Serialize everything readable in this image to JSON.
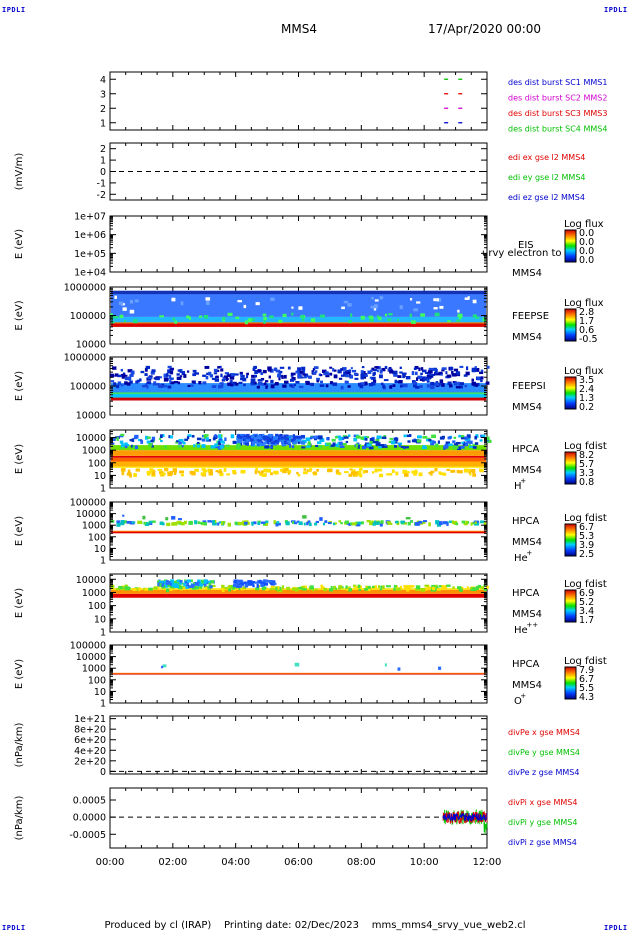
{
  "corner_label": "IPDLI",
  "header": {
    "spacecraft": "MMS4",
    "date": "17/Apr/2020 00:00"
  },
  "footer": {
    "producer": "Produced by cl (IRAP)",
    "printing_date": "Printing date: 02/Dec/2023",
    "script": "mms_mms4_srvy_vue_web2.cl"
  },
  "colors": {
    "red": "#e00000",
    "green": "#00c000",
    "blue": "#0000cc",
    "magenta": "#d000d0",
    "orange": "#ff8800",
    "yellow": "#ffee00",
    "cyan": "#00c8ff"
  },
  "chart_data": [
    {
      "type": "scatter",
      "panel": "burst",
      "yticks": [
        "1",
        "2",
        "3",
        "4"
      ],
      "ylim": [
        0.5,
        4.5
      ],
      "legend": [
        {
          "label": "des dist burst SC1 MMS1",
          "color": "#0000cc"
        },
        {
          "label": "des dist burst SC2 MMS2",
          "color": "#d000d0"
        },
        {
          "label": "des dist burst SC3 MMS3",
          "color": "#e00000"
        },
        {
          "label": "des dist burst SC4 MMS4",
          "color": "#00c000"
        }
      ],
      "series": [
        {
          "name": "des dist burst SC1 MMS1",
          "x": [
            10.7,
            11.15
          ],
          "y": [
            1,
            1
          ]
        },
        {
          "name": "des dist burst SC2 MMS2",
          "x": [
            10.7,
            11.15
          ],
          "y": [
            2,
            2
          ]
        },
        {
          "name": "des dist burst SC3 MMS3",
          "x": [
            10.7,
            11.15
          ],
          "y": [
            3,
            3
          ]
        },
        {
          "name": "des dist burst SC4 MMS4",
          "x": [
            10.7,
            11.15
          ],
          "y": [
            4,
            4
          ]
        }
      ]
    },
    {
      "type": "line",
      "panel": "edi",
      "ylabel": "(mV/m)",
      "yticks": [
        "-2",
        "-1",
        "0",
        "1",
        "2"
      ],
      "ylim": [
        -2.5,
        2.5
      ],
      "legend": [
        {
          "label": "edi ex gse l2 MMS4",
          "color": "#e00000"
        },
        {
          "label": "edi ey gse l2 MMS4",
          "color": "#00c000"
        },
        {
          "label": "edi ez gse l2 MMS4",
          "color": "#0000cc"
        }
      ]
    },
    {
      "type": "heatmap",
      "panel": "eis",
      "ylabel": "E (eV)",
      "yticks": [
        "1e+04",
        "1e+05",
        "1e+06",
        "1e+07"
      ],
      "ylog": [
        4,
        7
      ],
      "labels": [
        "EIS",
        "MMS4"
      ],
      "overlay_text": "urvy electron to",
      "cbar": {
        "title": "Log flux",
        "ticks": [
          "0.0",
          "0.0",
          "0.0",
          "0.0"
        ]
      }
    },
    {
      "type": "heatmap",
      "panel": "feepse",
      "ylabel": "E (eV)",
      "yticks": [
        "10000",
        "100000",
        "1000000"
      ],
      "ylog": [
        4,
        6
      ],
      "labels": [
        "FEEPSE",
        "MMS4"
      ],
      "cbar": {
        "title": "Log flux",
        "ticks": [
          "2.8",
          "1.7",
          "0.6",
          "-0.5"
        ]
      }
    },
    {
      "type": "heatmap",
      "panel": "feepsi",
      "ylabel": "E (eV)",
      "yticks": [
        "10000",
        "100000",
        "1000000"
      ],
      "ylog": [
        4,
        6
      ],
      "labels": [
        "FEEPSI",
        "MMS4"
      ],
      "cbar": {
        "title": "Log flux",
        "ticks": [
          "3.5",
          "2.4",
          "1.3",
          "0.2"
        ]
      }
    },
    {
      "type": "heatmap",
      "panel": "hpca_h",
      "ylabel": "E (eV)",
      "yticks": [
        "1",
        "10",
        "100",
        "1000",
        "10000"
      ],
      "ylog": [
        0,
        4.6
      ],
      "labels": [
        "HPCA",
        "MMS4",
        "H",
        "+"
      ],
      "cbar": {
        "title": "Log fdist",
        "ticks": [
          "8.2",
          "5.7",
          "3.3",
          "0.8"
        ]
      }
    },
    {
      "type": "heatmap",
      "panel": "hpca_he",
      "ylabel": "E (eV)",
      "yticks": [
        "1",
        "10",
        "100",
        "1000",
        "10000",
        "100000"
      ],
      "ylog": [
        0,
        5
      ],
      "labels": [
        "HPCA",
        "MMS4",
        "He",
        "+"
      ],
      "cbar": {
        "title": "Log fdist",
        "ticks": [
          "6.7",
          "5.3",
          "3.9",
          "2.5"
        ]
      }
    },
    {
      "type": "heatmap",
      "panel": "hpca_he2",
      "ylabel": "E (eV)",
      "yticks": [
        "1",
        "10",
        "100",
        "1000",
        "10000"
      ],
      "ylog": [
        0,
        4.4
      ],
      "labels": [
        "HPCA",
        "MMS4",
        "He",
        "++"
      ],
      "cbar": {
        "title": "Log fdist",
        "ticks": [
          "6.9",
          "5.2",
          "3.4",
          "1.7"
        ]
      }
    },
    {
      "type": "heatmap",
      "panel": "hpca_o",
      "ylabel": "E (eV)",
      "yticks": [
        "1",
        "10",
        "100",
        "1000",
        "10000",
        "100000"
      ],
      "ylog": [
        0,
        5
      ],
      "labels": [
        "HPCA",
        "MMS4",
        "O",
        "+"
      ],
      "cbar": {
        "title": "Log fdist",
        "ticks": [
          "7.9",
          "6.7",
          "5.5",
          "4.3"
        ]
      }
    },
    {
      "type": "line",
      "panel": "divpe",
      "ylabel": "(nPa/km)",
      "yticks": [
        "0",
        "2e+20",
        "4e+20",
        "6e+20",
        "8e+20",
        "1e+21"
      ],
      "ylim": [
        -5e+19,
        1.05e+21
      ],
      "legend": [
        {
          "label": "divPe x gse MMS4",
          "color": "#e00000"
        },
        {
          "label": "divPe y gse MMS4",
          "color": "#00c000"
        },
        {
          "label": "divPe z gse MMS4",
          "color": "#0000cc"
        }
      ]
    },
    {
      "type": "line",
      "panel": "divpi",
      "ylabel": "(nPa/km)",
      "yticks": [
        "-0.0005",
        "0.0000",
        "0.0005"
      ],
      "ylim": [
        -0.0009,
        0.00085
      ],
      "legend": [
        {
          "label": "divPi x gse MMS4",
          "color": "#e00000"
        },
        {
          "label": "divPi y gse MMS4",
          "color": "#00c000"
        },
        {
          "label": "divPi z gse MMS4",
          "color": "#0000cc"
        }
      ],
      "active_range": [
        10.6,
        12
      ]
    }
  ],
  "x_axis": {
    "ticks": [
      "00:00",
      "02:00",
      "04:00",
      "06:00",
      "08:00",
      "10:00",
      "12:00"
    ],
    "xlim": [
      0,
      12
    ]
  }
}
